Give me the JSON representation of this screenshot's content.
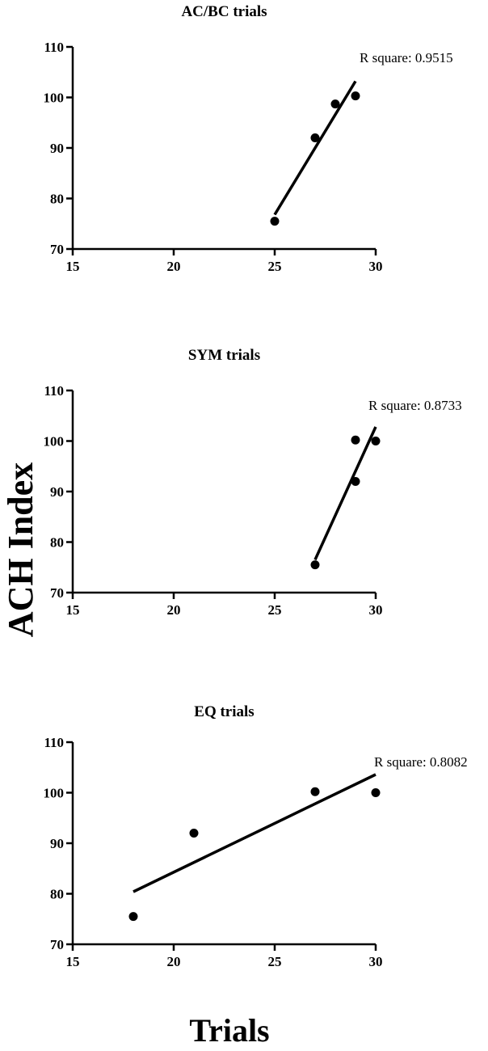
{
  "shared": {
    "ylabel": "ACH Index",
    "xlabel": "Trials"
  },
  "chart_data": [
    {
      "type": "scatter",
      "title": "AC/BC trials",
      "annotation": "R square: 0.9515",
      "xlim": [
        15,
        30
      ],
      "ylim": [
        70,
        110
      ],
      "xticks": [
        15,
        20,
        25,
        30
      ],
      "yticks": [
        70,
        80,
        90,
        100,
        110
      ],
      "points": [
        {
          "x": 25,
          "y": 75.5
        },
        {
          "x": 27,
          "y": 92
        },
        {
          "x": 28,
          "y": 98.7
        },
        {
          "x": 29,
          "y": 100.3
        }
      ],
      "fit_line": {
        "x": [
          25,
          29
        ],
        "y": [
          76.8,
          103.2
        ]
      },
      "grid": false
    },
    {
      "type": "scatter",
      "title": "SYM trials",
      "annotation": "R square: 0.8733",
      "xlim": [
        15,
        30
      ],
      "ylim": [
        70,
        110
      ],
      "xticks": [
        15,
        20,
        25,
        30
      ],
      "yticks": [
        70,
        80,
        90,
        100,
        110
      ],
      "points": [
        {
          "x": 27,
          "y": 75.5
        },
        {
          "x": 29,
          "y": 92
        },
        {
          "x": 29,
          "y": 100.2
        },
        {
          "x": 30,
          "y": 100
        }
      ],
      "fit_line": {
        "x": [
          27,
          30
        ],
        "y": [
          76.5,
          102.8
        ]
      },
      "grid": false
    },
    {
      "type": "scatter",
      "title": "EQ trials",
      "annotation": "R square: 0.8082",
      "xlim": [
        15,
        30
      ],
      "ylim": [
        70,
        110
      ],
      "xticks": [
        15,
        20,
        25,
        30
      ],
      "yticks": [
        70,
        80,
        90,
        100,
        110
      ],
      "points": [
        {
          "x": 18,
          "y": 75.5
        },
        {
          "x": 21,
          "y": 92
        },
        {
          "x": 27,
          "y": 100.2
        },
        {
          "x": 30,
          "y": 100
        }
      ],
      "fit_line": {
        "x": [
          18,
          30
        ],
        "y": [
          80.4,
          103.6
        ]
      },
      "grid": false
    }
  ]
}
